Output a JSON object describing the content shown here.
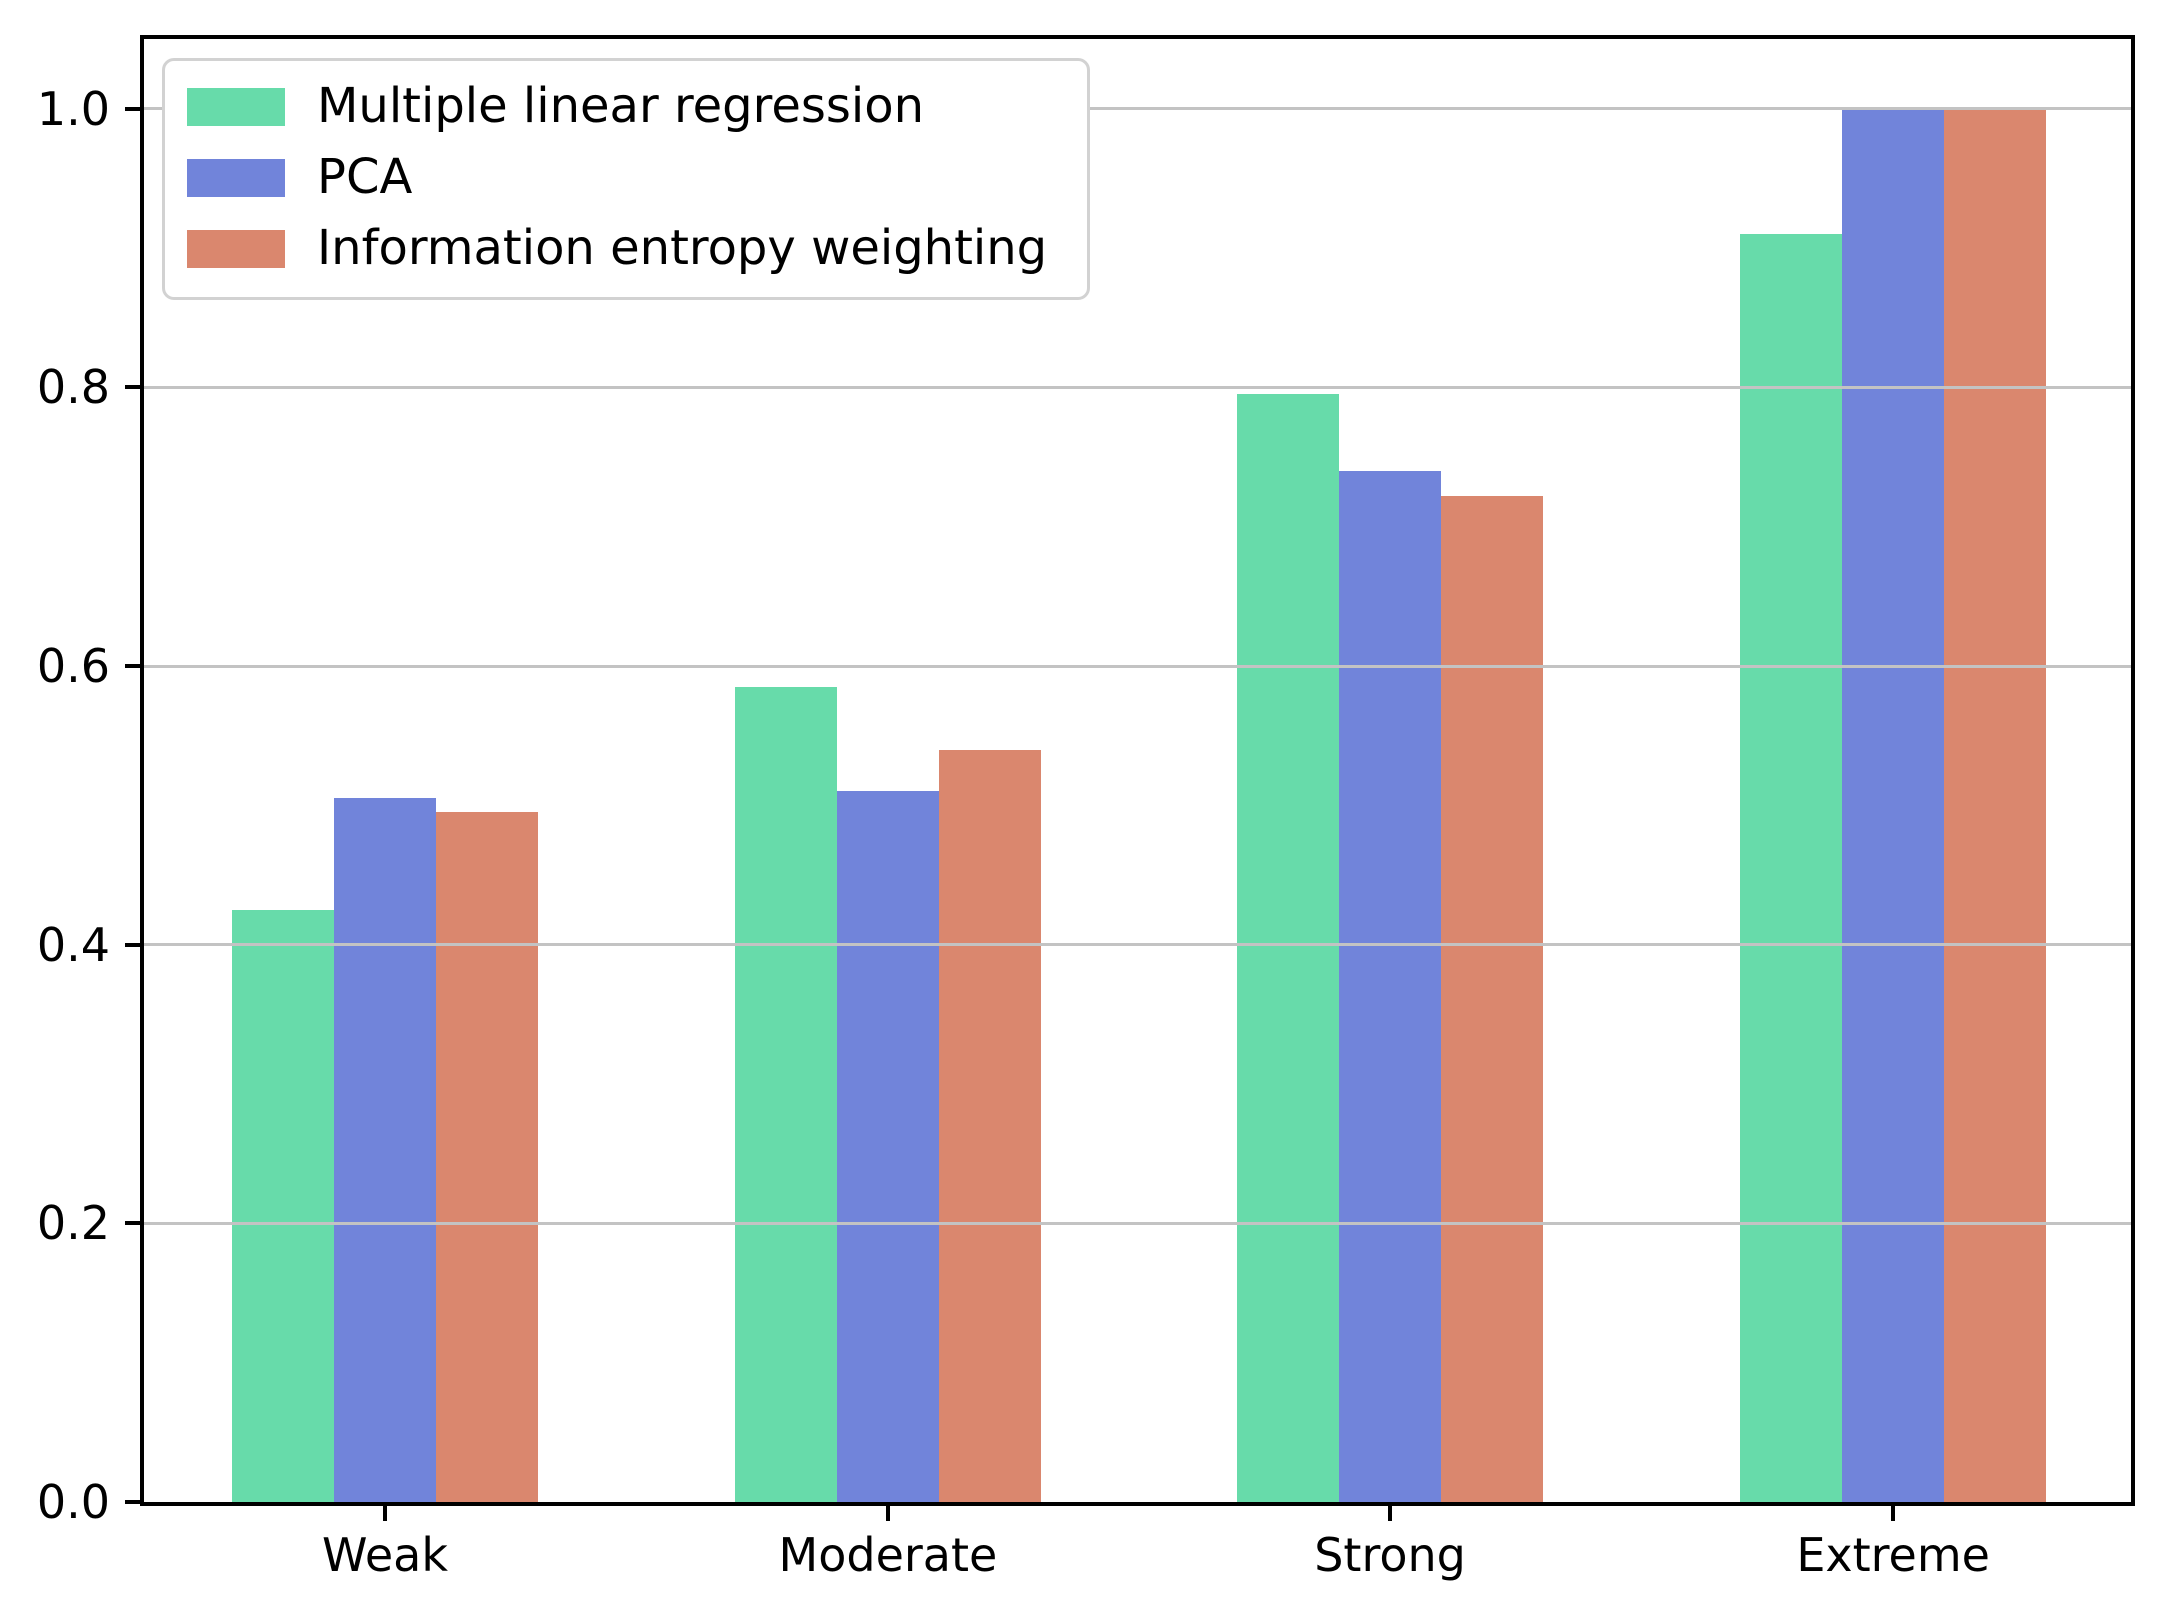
{
  "figure": {
    "background": "#ffffff"
  },
  "chart_data": {
    "type": "bar",
    "title": "",
    "xlabel": "",
    "ylabel": "",
    "categories": [
      "Weak",
      "Moderate",
      "Strong",
      "Extreme"
    ],
    "series": [
      {
        "name": "Multiple linear regression",
        "color": "#67dbaa",
        "values": [
          0.425,
          0.585,
          0.795,
          0.91
        ]
      },
      {
        "name": "PCA",
        "color": "#7184da",
        "values": [
          0.505,
          0.51,
          0.74,
          1.0
        ]
      },
      {
        "name": "Information entropy weighting",
        "color": "#da876e",
        "values": [
          0.495,
          0.54,
          0.722,
          1.0
        ]
      }
    ],
    "ylim": [
      0.0,
      1.05
    ],
    "yticks": [
      "0.0",
      "0.2",
      "0.4",
      "0.6",
      "0.8",
      "1.0"
    ],
    "grid": "horizontal",
    "gridline_color": "#c3c3c3",
    "spine_color": "#000000",
    "legend_position": "upper-left",
    "legend_border_color": "#d2d2d2"
  }
}
